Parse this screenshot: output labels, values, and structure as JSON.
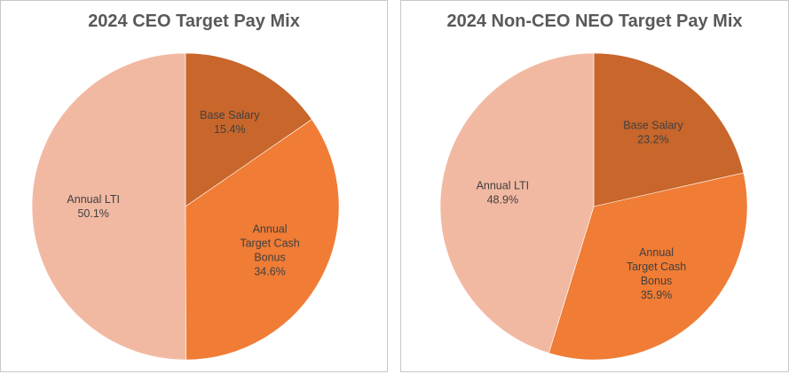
{
  "chart_data": [
    {
      "type": "pie",
      "title": "2024 CEO Target Pay Mix",
      "slices": [
        {
          "name": "Base Salary",
          "label_lines": [
            "Base Salary"
          ],
          "value": 15.4,
          "value_label": "15.4%",
          "color": "#c8662b"
        },
        {
          "name": "Annual Target Cash Bonus",
          "label_lines": [
            "Annual",
            "Target Cash",
            "Bonus"
          ],
          "value": 34.6,
          "value_label": "34.6%",
          "color": "#f07c35"
        },
        {
          "name": "Annual LTI",
          "label_lines": [
            "Annual LTI"
          ],
          "value": 50.1,
          "value_label": "50.1%",
          "color": "#f2b9a2"
        }
      ]
    },
    {
      "type": "pie",
      "title": "2024 Non-CEO NEO Target Pay  Mix",
      "slices": [
        {
          "name": "Base Salary",
          "label_lines": [
            "Base Salary"
          ],
          "value": 23.2,
          "value_label": "23.2%",
          "color": "#c8662b"
        },
        {
          "name": "Annual Target Cash Bonus",
          "label_lines": [
            "Annual",
            "Target Cash",
            "Bonus"
          ],
          "value": 35.9,
          "value_label": "35.9%",
          "color": "#f07c35"
        },
        {
          "name": "Annual LTI",
          "label_lines": [
            "Annual LTI"
          ],
          "value": 48.9,
          "value_label": "48.9%",
          "color": "#f2b9a2"
        }
      ]
    }
  ]
}
